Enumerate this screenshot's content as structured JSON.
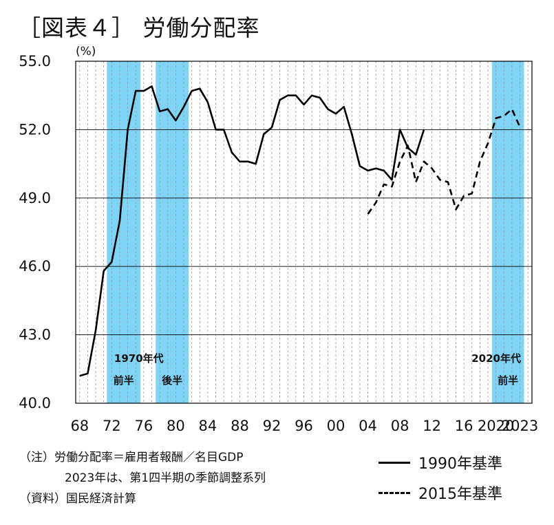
{
  "title": "［図表４］ 労働分配率",
  "chart_data": {
    "type": "line",
    "y_unit": "(%)",
    "ylim": [
      40.0,
      55.0
    ],
    "y_ticks": [
      "40.0",
      "43.0",
      "46.0",
      "49.0",
      "52.0",
      "55.0"
    ],
    "x_range": [
      1967.5,
      2024.5
    ],
    "x_ticks": [
      {
        "year": 1968,
        "label": "68"
      },
      {
        "year": 1972,
        "label": "72"
      },
      {
        "year": 1976,
        "label": "76"
      },
      {
        "year": 1980,
        "label": "80"
      },
      {
        "year": 1984,
        "label": "84"
      },
      {
        "year": 1988,
        "label": "88"
      },
      {
        "year": 1992,
        "label": "92"
      },
      {
        "year": 1996,
        "label": "96"
      },
      {
        "year": 2000,
        "label": "00"
      },
      {
        "year": 2004,
        "label": "04"
      },
      {
        "year": 2008,
        "label": "08"
      },
      {
        "year": 2012,
        "label": "12"
      },
      {
        "year": 2016,
        "label": "16"
      },
      {
        "year": 2020,
        "label": "2020"
      },
      {
        "year": 2023,
        "label": "2023"
      }
    ],
    "grid": "vertical dashed at each year",
    "shaded_periods": [
      {
        "from": 1971.4,
        "to": 1975.6,
        "color": "#7fd3f5",
        "labels": [
          "1970年代",
          "前半"
        ]
      },
      {
        "from": 1977.5,
        "to": 1981.6,
        "color": "#7fd3f5",
        "labels": [
          "後半"
        ]
      },
      {
        "from": 2019.5,
        "to": 2023.5,
        "color": "#7fd3f5",
        "labels": [
          "2020年代",
          "前半"
        ]
      }
    ],
    "series": [
      {
        "name": "1990年基準",
        "style": "solid",
        "points": [
          [
            1968,
            41.2
          ],
          [
            1969,
            41.3
          ],
          [
            1970,
            43.2
          ],
          [
            1971,
            45.8
          ],
          [
            1972,
            46.2
          ],
          [
            1973,
            48.0
          ],
          [
            1974,
            52.0
          ],
          [
            1975,
            53.7
          ],
          [
            1976,
            53.7
          ],
          [
            1977,
            53.9
          ],
          [
            1978,
            52.8
          ],
          [
            1979,
            52.9
          ],
          [
            1980,
            52.4
          ],
          [
            1981,
            53.0
          ],
          [
            1982,
            53.7
          ],
          [
            1983,
            53.8
          ],
          [
            1984,
            53.2
          ],
          [
            1985,
            52.0
          ],
          [
            1986,
            52.0
          ],
          [
            1987,
            51.0
          ],
          [
            1988,
            50.6
          ],
          [
            1989,
            50.6
          ],
          [
            1990,
            50.5
          ],
          [
            1991,
            51.8
          ],
          [
            1992,
            52.1
          ],
          [
            1993,
            53.3
          ],
          [
            1994,
            53.5
          ],
          [
            1995,
            53.5
          ],
          [
            1996,
            53.1
          ],
          [
            1997,
            53.5
          ],
          [
            1998,
            53.4
          ],
          [
            1999,
            52.9
          ],
          [
            2000,
            52.7
          ],
          [
            2001,
            53.0
          ],
          [
            2002,
            51.8
          ],
          [
            2003,
            50.4
          ],
          [
            2004,
            50.2
          ],
          [
            2005,
            50.3
          ],
          [
            2006,
            50.2
          ],
          [
            2007,
            49.8
          ],
          [
            2008,
            52.0
          ],
          [
            2009,
            51.2
          ],
          [
            2010,
            50.9
          ],
          [
            2011,
            52.0
          ]
        ]
      },
      {
        "name": "2015年基準",
        "style": "dashed",
        "points": [
          [
            2004,
            48.3
          ],
          [
            2005,
            48.8
          ],
          [
            2006,
            49.6
          ],
          [
            2007,
            49.5
          ],
          [
            2008,
            50.6
          ],
          [
            2009,
            51.3
          ],
          [
            2010,
            49.7
          ],
          [
            2011,
            50.6
          ],
          [
            2012,
            50.3
          ],
          [
            2013,
            49.8
          ],
          [
            2014,
            49.7
          ],
          [
            2015,
            48.5
          ],
          [
            2016,
            49.1
          ],
          [
            2017,
            49.2
          ],
          [
            2018,
            50.6
          ],
          [
            2019,
            51.4
          ],
          [
            2020,
            52.5
          ],
          [
            2021,
            52.6
          ],
          [
            2022,
            52.9
          ],
          [
            2023,
            52.1
          ]
        ]
      }
    ]
  },
  "notes": {
    "line1": "（注）労働分配率＝雇用者報酬／名目GDP",
    "line2": "2023年は、第1四半期の季節調整系列",
    "line3": "（資料）国民経済計算"
  },
  "legend": {
    "solid_label": "1990年基準",
    "dashed_label": "2015年基準"
  }
}
